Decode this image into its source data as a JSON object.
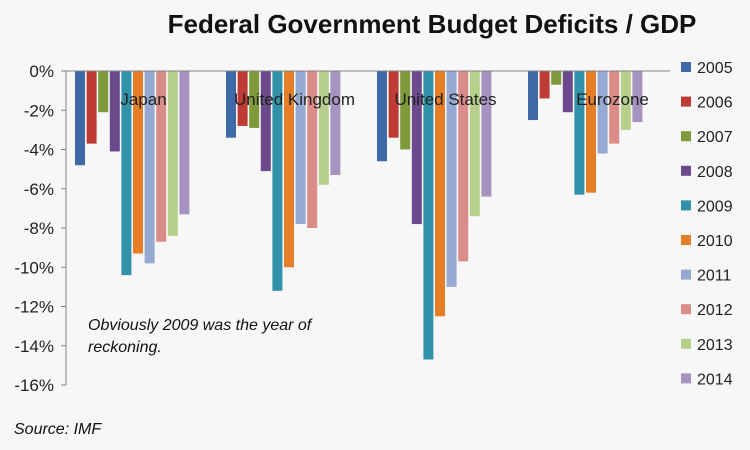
{
  "chart_data": {
    "type": "bar",
    "title": "Federal Government Budget Deficits / GDP",
    "xlabel": "",
    "ylabel": "",
    "ylim": [
      -16,
      0
    ],
    "yticks": [
      0,
      -2,
      -4,
      -6,
      -8,
      -10,
      -12,
      -14,
      -16
    ],
    "ytick_labels": [
      "0%",
      "-2%",
      "-4%",
      "-6%",
      "-8%",
      "-10%",
      "-12%",
      "-14%",
      "-16%"
    ],
    "grid": false,
    "legend_position": "right",
    "categories": [
      "Japan",
      "United Kingdom",
      "United States",
      "Eurozone"
    ],
    "series": [
      {
        "name": "2005",
        "color": "#3f6aa8",
        "values": [
          -4.8,
          -3.4,
          -4.6,
          -2.5
        ]
      },
      {
        "name": "2006",
        "color": "#bf3b36",
        "values": [
          -3.7,
          -2.8,
          -3.4,
          -1.4
        ]
      },
      {
        "name": "2007",
        "color": "#7f9a3a",
        "values": [
          -2.1,
          -2.9,
          -4.0,
          -0.7
        ]
      },
      {
        "name": "2008",
        "color": "#6a4a8c",
        "values": [
          -4.1,
          -5.1,
          -7.8,
          -2.1
        ]
      },
      {
        "name": "2009",
        "color": "#2f92a8",
        "values": [
          -10.4,
          -11.2,
          -14.7,
          -6.3
        ]
      },
      {
        "name": "2010",
        "color": "#e57e27",
        "values": [
          -9.3,
          -10.0,
          -12.5,
          -6.2
        ]
      },
      {
        "name": "2011",
        "color": "#95a9d2",
        "values": [
          -9.8,
          -7.8,
          -11.0,
          -4.2
        ]
      },
      {
        "name": "2012",
        "color": "#da8c89",
        "values": [
          -8.7,
          -8.0,
          -9.7,
          -3.7
        ]
      },
      {
        "name": "2013",
        "color": "#b6d08b",
        "values": [
          -8.4,
          -5.8,
          -7.4,
          -3.0
        ]
      },
      {
        "name": "2014",
        "color": "#a693bf",
        "values": [
          -7.3,
          -5.3,
          -6.4,
          -2.6
        ]
      }
    ],
    "annotation": "Obviously 2009 was the year of reckoning.",
    "annotation_lines": [
      "Obviously 2009 was the year of",
      "reckoning."
    ],
    "source": "Source: IMF"
  }
}
